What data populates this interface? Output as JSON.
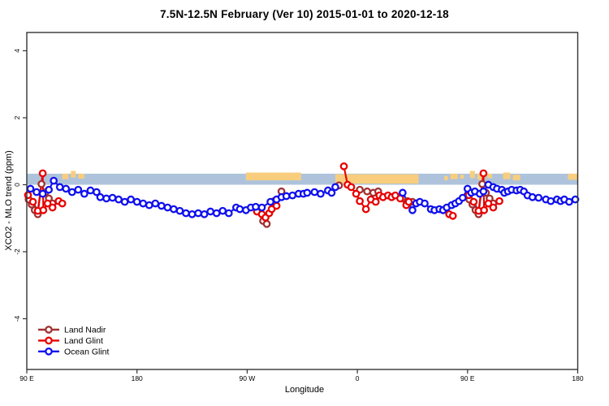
{
  "title": "7.5N-12.5N February (Ver 10)   2015-01-01 to 2020-12-18",
  "chart_data": {
    "type": "line",
    "title": "7.5N-12.5N February (Ver 10)   2015-01-01 to 2020-12-18",
    "xlabel": "Longitude",
    "ylabel": "XCO2 - MLO trend (ppm)",
    "x_axis": {
      "unit": "degrees eastward along axis starting at 90E (axis spans 450 deg, longitudes 90E..180..90W..0..90E..180 repeat last quadrant)",
      "range": [
        0,
        450
      ],
      "ticks": [
        {
          "pos": 0,
          "label": "90 E"
        },
        {
          "pos": 90,
          "label": "180"
        },
        {
          "pos": 180,
          "label": "90 W"
        },
        {
          "pos": 270,
          "label": "0"
        },
        {
          "pos": 360,
          "label": "90 E"
        },
        {
          "pos": 450,
          "label": "180"
        }
      ]
    },
    "y_axis": {
      "range": [
        -5.05,
        4.55
      ],
      "ticks": [
        "-4",
        "-2",
        "0",
        "2",
        "4"
      ],
      "tick_values": [
        -4,
        -2,
        0,
        2,
        4
      ],
      "grid": false
    },
    "zero_band": {
      "from": 0,
      "to": 0.33,
      "ocean_color": "#aec3db",
      "land_color": "#f8ce7e",
      "land_patches": [
        {
          "start": 29,
          "end": 34,
          "top": 0,
          "bottom": 0.5
        },
        {
          "start": 36,
          "end": 40,
          "top": -0.25,
          "bottom": 0.35
        },
        {
          "start": 42,
          "end": 47,
          "top": 0,
          "bottom": 0.45
        },
        {
          "start": 179,
          "end": 224,
          "top": -0.1,
          "bottom": 0.6
        },
        {
          "start": 252,
          "end": 320,
          "top": 0.05,
          "bottom": 0.9
        },
        {
          "start": 341,
          "end": 344,
          "top": 0.2,
          "bottom": 0.6
        },
        {
          "start": 346,
          "end": 352,
          "top": 0,
          "bottom": 0.5
        },
        {
          "start": 354,
          "end": 357,
          "top": 0.1,
          "bottom": 0.45
        },
        {
          "start": 362,
          "end": 366,
          "top": -0.25,
          "bottom": 0.4
        },
        {
          "start": 368,
          "end": 374,
          "top": 0,
          "bottom": 0.55
        },
        {
          "start": 376,
          "end": 380,
          "top": 0,
          "bottom": 0.4
        },
        {
          "start": 389,
          "end": 395,
          "top": -0.1,
          "bottom": 0.5
        },
        {
          "start": 397,
          "end": 403,
          "top": 0.1,
          "bottom": 0.6
        },
        {
          "start": 442,
          "end": 450,
          "top": 0,
          "bottom": 0.55
        }
      ]
    },
    "series": [
      {
        "name": "Land Nadir",
        "color": "#a13232",
        "segments": [
          [
            [
              1.5,
              -0.44
            ],
            [
              4,
              -0.59
            ],
            [
              6.5,
              -0.76
            ],
            [
              9,
              -0.88
            ],
            [
              12,
              0.02
            ],
            [
              15,
              -0.24
            ],
            [
              18,
              -0.41
            ],
            [
              21,
              -0.56
            ]
          ],
          [
            [
              193,
              -1.08
            ],
            [
              196,
              -1.17
            ]
          ],
          [
            [
              208,
              -0.2
            ]
          ],
          [
            [
              255,
              -0.02
            ]
          ],
          [
            [
              272,
              -0.15
            ],
            [
              278,
              -0.2
            ],
            [
              283,
              -0.24
            ],
            [
              287,
              -0.2
            ]
          ],
          [
            [
              311,
              -0.49
            ],
            [
              315,
              -0.51
            ]
          ],
          [
            [
              361.5,
              -0.44
            ],
            [
              364,
              -0.59
            ],
            [
              366.5,
              -0.76
            ],
            [
              369,
              -0.88
            ],
            [
              372,
              0.02
            ],
            [
              375,
              -0.24
            ],
            [
              378,
              -0.41
            ],
            [
              381,
              -0.56
            ]
          ]
        ]
      },
      {
        "name": "Land Glint",
        "color": "#e80000",
        "segments": [
          [
            [
              1,
              -0.31
            ],
            [
              5,
              -0.51
            ],
            [
              9,
              -0.78
            ],
            [
              13,
              0.34
            ],
            [
              13.5,
              -0.76
            ],
            [
              17,
              -0.56
            ],
            [
              21,
              -0.68
            ],
            [
              26,
              -0.49
            ],
            [
              29,
              -0.56
            ]
          ],
          [
            [
              188,
              -0.8
            ],
            [
              192,
              -0.88
            ],
            [
              195,
              -0.98
            ],
            [
              198,
              -0.85
            ],
            [
              200,
              -0.73
            ],
            [
              202,
              -0.49
            ],
            [
              204,
              -0.63
            ]
          ],
          [
            [
              259,
              0.55
            ],
            [
              262,
              0.0
            ],
            [
              265,
              -0.07
            ],
            [
              269,
              -0.27
            ],
            [
              272,
              -0.49
            ],
            [
              277,
              -0.73
            ],
            [
              281,
              -0.44
            ],
            [
              285,
              -0.51
            ],
            [
              288,
              -0.32
            ],
            [
              291,
              -0.37
            ],
            [
              295,
              -0.32
            ],
            [
              298,
              -0.37
            ],
            [
              301,
              -0.32
            ],
            [
              305,
              -0.41
            ],
            [
              310,
              -0.61
            ],
            [
              312,
              -0.51
            ]
          ],
          [
            [
              345,
              -0.88
            ],
            [
              348,
              -0.93
            ]
          ],
          [
            [
              361,
              -0.31
            ],
            [
              365,
              -0.51
            ],
            [
              369,
              -0.78
            ],
            [
              373,
              0.34
            ],
            [
              373.5,
              -0.76
            ],
            [
              377,
              -0.56
            ],
            [
              381,
              -0.68
            ],
            [
              386,
              -0.49
            ]
          ]
        ]
      },
      {
        "name": "Ocean Glint",
        "color": "#1010ee",
        "segments": [
          [
            [
              3,
              -0.12
            ],
            [
              8,
              -0.22
            ],
            [
              13,
              -0.27
            ],
            [
              18,
              -0.15
            ],
            [
              22,
              0.12
            ],
            [
              27,
              -0.07
            ],
            [
              32,
              -0.12
            ],
            [
              37,
              -0.22
            ],
            [
              42,
              -0.15
            ],
            [
              47,
              -0.27
            ],
            [
              52,
              -0.17
            ],
            [
              57,
              -0.22
            ],
            [
              60,
              -0.37
            ],
            [
              65,
              -0.41
            ],
            [
              70,
              -0.39
            ],
            [
              75,
              -0.44
            ],
            [
              80,
              -0.51
            ],
            [
              85,
              -0.44
            ],
            [
              90,
              -0.51
            ],
            [
              95,
              -0.56
            ],
            [
              100,
              -0.61
            ],
            [
              105,
              -0.56
            ],
            [
              110,
              -0.63
            ],
            [
              115,
              -0.68
            ],
            [
              120,
              -0.73
            ],
            [
              125,
              -0.78
            ],
            [
              130,
              -0.85
            ],
            [
              135,
              -0.88
            ],
            [
              140,
              -0.85
            ],
            [
              145,
              -0.88
            ],
            [
              150,
              -0.8
            ],
            [
              155,
              -0.85
            ],
            [
              160,
              -0.78
            ],
            [
              165,
              -0.85
            ],
            [
              171,
              -0.68
            ],
            [
              174,
              -0.73
            ],
            [
              179,
              -0.76
            ],
            [
              183,
              -0.68
            ],
            [
              187,
              -0.66
            ],
            [
              192,
              -0.68
            ],
            [
              199,
              -0.51
            ],
            [
              204,
              -0.44
            ],
            [
              208,
              -0.37
            ],
            [
              212,
              -0.34
            ],
            [
              217,
              -0.32
            ],
            [
              222,
              -0.27
            ],
            [
              226,
              -0.27
            ],
            [
              229,
              -0.24
            ],
            [
              235,
              -0.22
            ],
            [
              240,
              -0.27
            ],
            [
              246,
              -0.17
            ],
            [
              249,
              -0.24
            ],
            [
              252,
              -0.07
            ]
          ],
          [
            [
              307,
              -0.24
            ],
            [
              315,
              -0.76
            ],
            [
              318,
              -0.56
            ],
            [
              321,
              -0.51
            ],
            [
              325,
              -0.56
            ],
            [
              330,
              -0.73
            ],
            [
              333,
              -0.76
            ],
            [
              337,
              -0.73
            ],
            [
              340,
              -0.76
            ],
            [
              343,
              -0.68
            ],
            [
              347,
              -0.61
            ],
            [
              350,
              -0.56
            ],
            [
              353,
              -0.49
            ],
            [
              356,
              -0.39
            ],
            [
              360,
              -0.12
            ],
            [
              363,
              -0.24
            ],
            [
              366,
              -0.2
            ],
            [
              370,
              -0.27
            ],
            [
              373,
              -0.2
            ],
            [
              377,
              0.0
            ],
            [
              381,
              -0.07
            ],
            [
              384,
              -0.12
            ],
            [
              388,
              -0.15
            ],
            [
              390,
              -0.24
            ],
            [
              393,
              -0.2
            ],
            [
              396,
              -0.15
            ],
            [
              400,
              -0.17
            ],
            [
              403,
              -0.15
            ],
            [
              406,
              -0.2
            ],
            [
              409,
              -0.32
            ],
            [
              413,
              -0.37
            ],
            [
              418,
              -0.39
            ],
            [
              424,
              -0.44
            ],
            [
              428,
              -0.49
            ],
            [
              433,
              -0.44
            ],
            [
              436,
              -0.49
            ],
            [
              439,
              -0.44
            ],
            [
              443,
              -0.51
            ],
            [
              448,
              -0.44
            ]
          ]
        ]
      }
    ],
    "legend": {
      "position": "bottom-left",
      "entries": [
        "Land Nadir",
        "Land Glint",
        "Ocean Glint"
      ]
    }
  },
  "colors": {
    "land_nadir": "#a13232",
    "land_glint": "#e80000",
    "ocean_glint": "#1010ee",
    "band_ocean": "#aec3db",
    "band_land": "#f8ce7e",
    "axis": "#333333"
  }
}
